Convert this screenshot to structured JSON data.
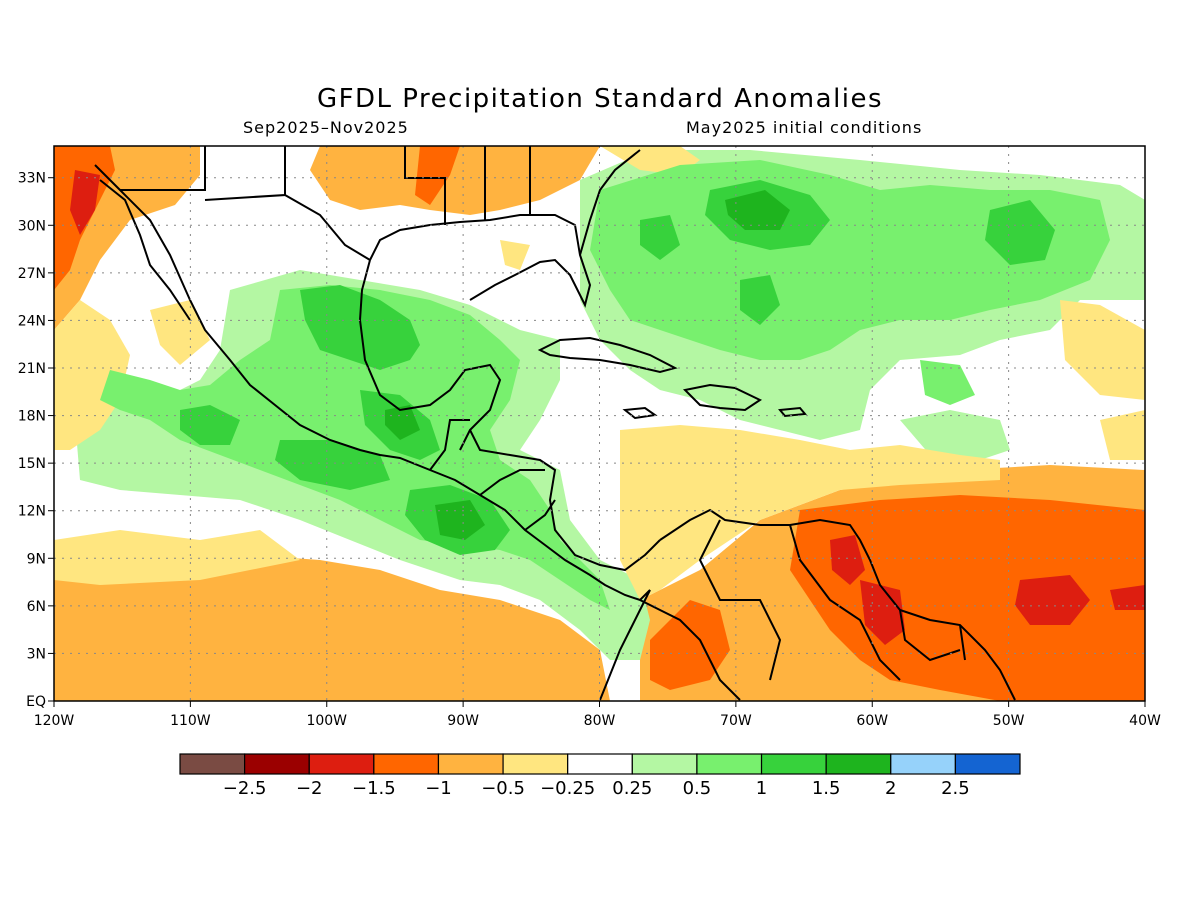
{
  "title": "GFDL Precipitation Standard Anomalies",
  "subtitle_left": "Sep2025–Nov2025",
  "subtitle_right": "May2025 initial conditions",
  "map": {
    "lon_range": [
      -120,
      -40
    ],
    "lat_range": [
      0,
      35
    ],
    "lon_ticks": [
      "120W",
      "110W",
      "100W",
      "90W",
      "80W",
      "70W",
      "60W",
      "50W",
      "40W"
    ],
    "lat_ticks": [
      "EQ",
      "3N",
      "6N",
      "9N",
      "12N",
      "15N",
      "18N",
      "21N",
      "24N",
      "27N",
      "30N",
      "33N"
    ]
  },
  "colorbar": {
    "colors": [
      "#7a4b43",
      "#9b0000",
      "#dd1e10",
      "#ff6600",
      "#ffb340",
      "#ffe680",
      "#ffffff",
      "#b4f7a3",
      "#78f06e",
      "#37d23c",
      "#1eb41e",
      "#96d2fa",
      "#1464d2"
    ],
    "labels": [
      "−2.5",
      "−2",
      "−1.5",
      "−1",
      "−0.5",
      "−0.25",
      "0.25",
      "0.5",
      "1",
      "1.5",
      "2",
      "2.5"
    ]
  },
  "regions": [
    {
      "level": "dry_moderate",
      "color": "#ffb340"
    },
    {
      "level": "wet_light",
      "color": "#b4f7a3"
    },
    {
      "level": "wet_moderate",
      "color": "#78f06e"
    },
    {
      "level": "wet_strong",
      "color": "#37d23c"
    },
    {
      "level": "wet_very_strong",
      "color": "#1eb41e"
    },
    {
      "level": "dry_light",
      "color": "#ffe680"
    },
    {
      "level": "dry_strong",
      "color": "#ff6600"
    },
    {
      "level": "dry_very_strong",
      "color": "#dd1e10"
    }
  ]
}
